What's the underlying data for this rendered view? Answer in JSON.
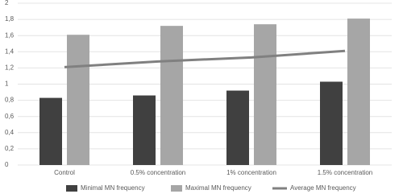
{
  "chart_data": {
    "type": "bar",
    "categories": [
      "Control",
      "0.5% concentration",
      "1% concentration",
      "1.5% concentration"
    ],
    "series": [
      {
        "name": "Minimal MN frequency",
        "type": "bar",
        "color": "#404040",
        "values": [
          0.83,
          0.86,
          0.92,
          1.03
        ]
      },
      {
        "name": "Maximal MN frequency",
        "type": "bar",
        "color": "#a6a6a6",
        "values": [
          1.61,
          1.72,
          1.74,
          1.81
        ]
      },
      {
        "name": "Average MN frequency",
        "type": "line",
        "color": "#808080",
        "values": [
          1.21,
          1.28,
          1.33,
          1.41
        ]
      }
    ],
    "ylim": [
      0,
      2
    ],
    "yticks": [
      0,
      {
        "value": 0.2,
        "label": "0,2"
      },
      {
        "value": 0.4,
        "label": "0,4"
      },
      {
        "value": 0.6,
        "label": "0,6"
      },
      {
        "value": 0.8,
        "label": "0,8"
      },
      1,
      {
        "value": 1.2,
        "label": "1,2"
      },
      {
        "value": 1.4,
        "label": "1,4"
      },
      {
        "value": 1.6,
        "label": "1,6"
      },
      {
        "value": 1.8,
        "label": "1,8"
      },
      2
    ],
    "grid": true,
    "legend": "bottom"
  }
}
